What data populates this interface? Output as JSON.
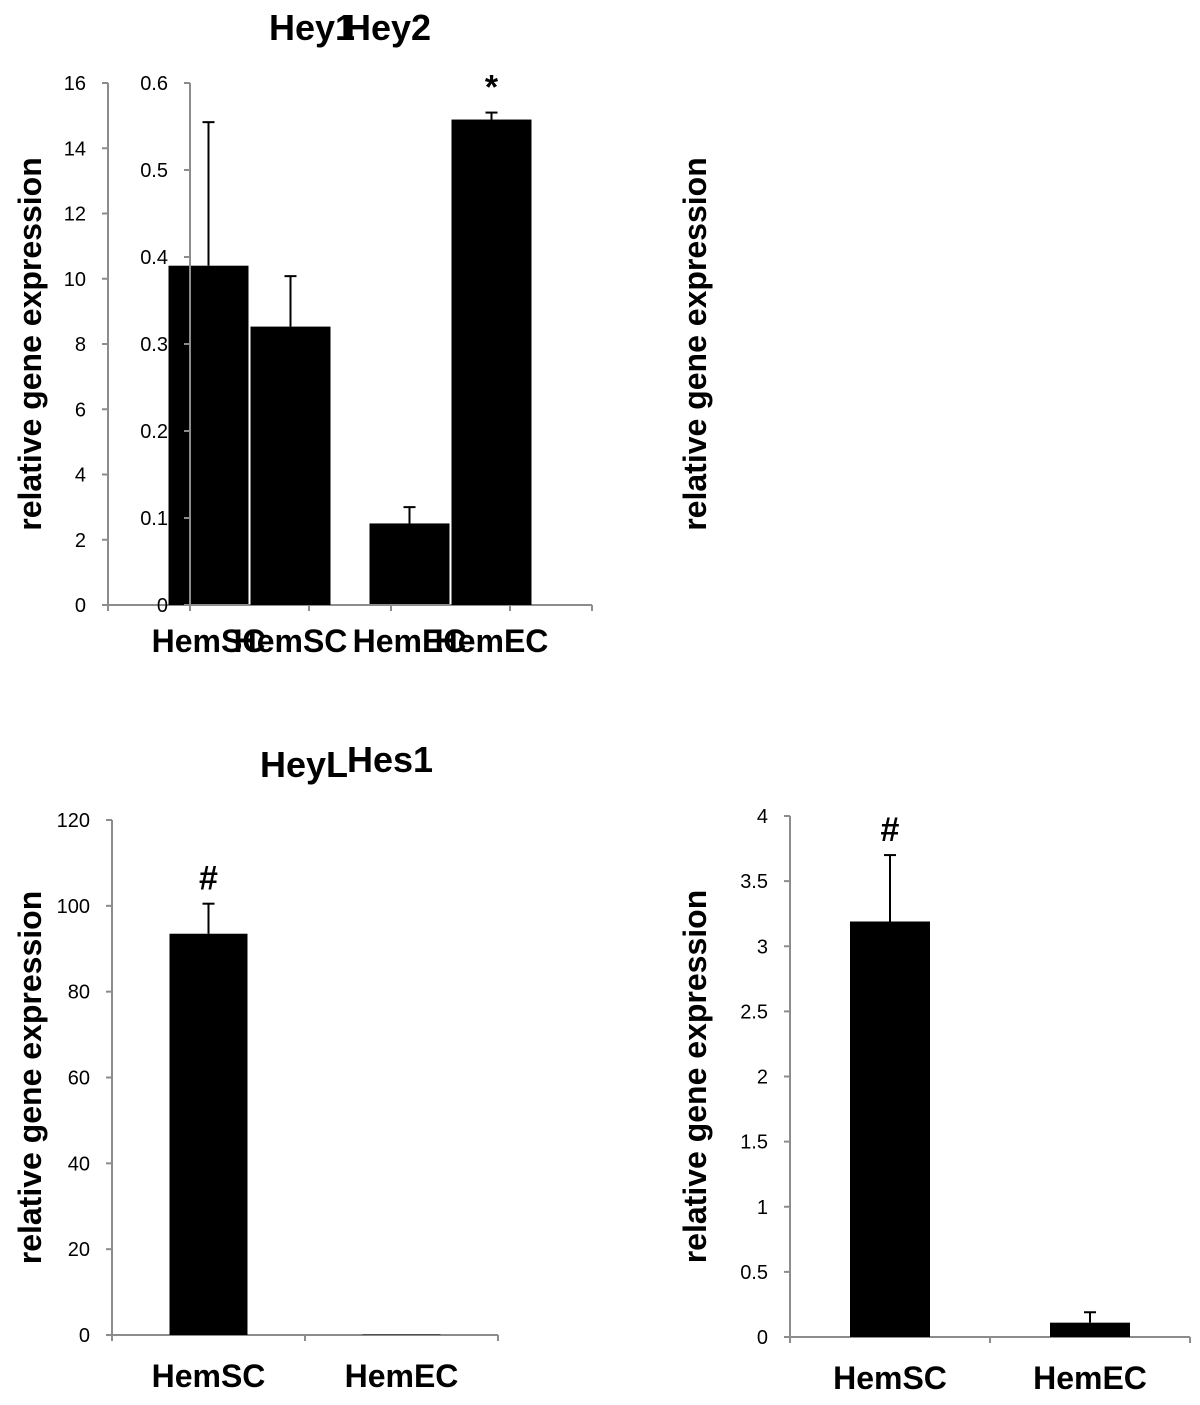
{
  "chart_data": [
    {
      "type": "bar",
      "title": "Hey1",
      "ylabel": "relative gene expression",
      "categories": [
        "HemSC",
        "HemEC"
      ],
      "values": [
        10.4,
        2.5
      ],
      "error": [
        4.4,
        0.5
      ],
      "ylim": [
        0,
        16
      ],
      "yticks": [
        "0",
        "2",
        "4",
        "6",
        "8",
        "10",
        "12",
        "14",
        "16"
      ],
      "annotations": [
        "",
        ""
      ]
    },
    {
      "type": "bar",
      "title": "Hey2",
      "ylabel": "relative gene expression",
      "categories": [
        "HemSC",
        "HemEC"
      ],
      "values": [
        0.32,
        0.558
      ],
      "error": [
        0.058,
        0.008
      ],
      "ylim": [
        0,
        0.6
      ],
      "yticks": [
        "0",
        "0.1",
        "0.2",
        "0.3",
        "0.4",
        "0.5",
        "0.6"
      ],
      "annotations": [
        "",
        "*"
      ]
    },
    {
      "type": "bar",
      "title": "HeyL",
      "ylabel": "relative gene expression",
      "categories": [
        "HemSC",
        "HemEC"
      ],
      "values": [
        93.5,
        0.1
      ],
      "error": [
        7,
        0
      ],
      "ylim": [
        0,
        120
      ],
      "yticks": [
        "0",
        "20",
        "40",
        "60",
        "80",
        "100",
        "120"
      ],
      "annotations": [
        "#",
        ""
      ]
    },
    {
      "type": "bar",
      "title": "Hes1",
      "ylabel": "relative gene expression",
      "categories": [
        "HemSC",
        "HemEC"
      ],
      "values": [
        3.19,
        0.11
      ],
      "error": [
        0.51,
        0.08
      ],
      "ylim": [
        0,
        4
      ],
      "yticks": [
        "0",
        "0.5",
        "1",
        "1.5",
        "2",
        "2.5",
        "3",
        "3.5",
        "4"
      ],
      "annotations": [
        "#",
        ""
      ]
    }
  ],
  "colors": {
    "bar": "#000000",
    "axis": "#8c8c8c",
    "error_bar": "#000000"
  }
}
